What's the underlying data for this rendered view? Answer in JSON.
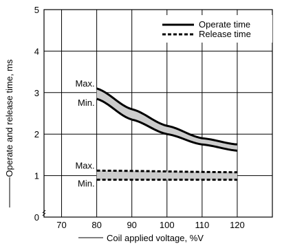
{
  "chart_data": {
    "type": "line",
    "title": "",
    "xlabel": "Coil applied voltage, %V",
    "ylabel": "Operate and release time, ms",
    "xlim": [
      65,
      130
    ],
    "ylim": [
      0,
      5
    ],
    "x_ticks": [
      70,
      80,
      90,
      100,
      110,
      120
    ],
    "y_ticks": [
      0,
      1,
      2,
      3,
      4,
      5
    ],
    "grid": true,
    "legend_position": "top-right",
    "series": [
      {
        "name": "Operate time",
        "style": "solid",
        "band": "max",
        "x": [
          80,
          90,
          100,
          110,
          120
        ],
        "y": [
          3.1,
          2.6,
          2.2,
          1.9,
          1.75
        ]
      },
      {
        "name": "Operate time",
        "style": "solid",
        "band": "min",
        "x": [
          80,
          90,
          100,
          110,
          120
        ],
        "y": [
          2.85,
          2.35,
          2.0,
          1.75,
          1.6
        ]
      },
      {
        "name": "Release time",
        "style": "dashed",
        "band": "max",
        "x": [
          80,
          120
        ],
        "y": [
          1.12,
          1.08
        ]
      },
      {
        "name": "Release time",
        "style": "dashed",
        "band": "min",
        "x": [
          80,
          120
        ],
        "y": [
          0.9,
          0.9
        ]
      }
    ],
    "band_labels": {
      "max": "Max.",
      "min": "Min."
    },
    "legend": [
      {
        "label": "Operate time",
        "style": "solid"
      },
      {
        "label": "Release time",
        "style": "dashed"
      }
    ],
    "colors": {
      "line": "#000000",
      "band_fill": "#cccccc",
      "grid": "#000000"
    }
  }
}
